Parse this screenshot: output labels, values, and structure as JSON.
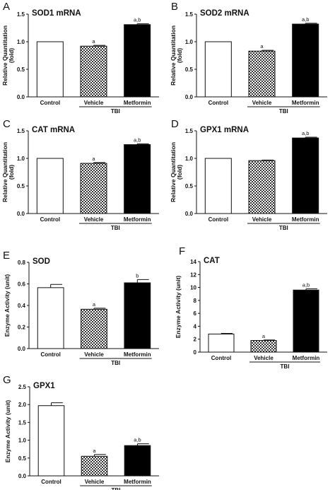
{
  "colors": {
    "control": "#ffffff",
    "vehicle": "checker",
    "metformin": "#000000",
    "axis": "#111111"
  },
  "chart_data": [
    {
      "panel": "A",
      "title": "SOD1 mRNA",
      "type": "bar",
      "ylabel": "Relative Quantitation\n(fold)",
      "ylim": [
        0,
        1.5
      ],
      "yticks": [
        "0.0",
        "0.5",
        "1.0",
        "1.5"
      ],
      "categories": [
        "Control",
        "Vehicle",
        "Metformin"
      ],
      "values": [
        1.0,
        0.92,
        1.31
      ],
      "errors": [
        0,
        0.015,
        0.015
      ],
      "annotations": [
        "",
        "a",
        "a,b"
      ],
      "group_label": "TBI"
    },
    {
      "panel": "B",
      "title": "SOD2 mRNA",
      "type": "bar",
      "ylabel": "Relative Quantitation\n(fold)",
      "ylim": [
        0,
        1.5
      ],
      "yticks": [
        "0.0",
        "0.5",
        "1.0",
        "1.5"
      ],
      "categories": [
        "Control",
        "Vehicle",
        "Metformin"
      ],
      "values": [
        1.0,
        0.83,
        1.32
      ],
      "errors": [
        0,
        0.015,
        0.015
      ],
      "annotations": [
        "",
        "a",
        "a,b"
      ],
      "group_label": "TBI"
    },
    {
      "panel": "C",
      "title": "CAT mRNA",
      "type": "bar",
      "ylabel": "Relative Quantitation\n(fold)",
      "ylim": [
        0,
        1.5
      ],
      "yticks": [
        "0.0",
        "0.5",
        "1.0",
        "1.5"
      ],
      "categories": [
        "Control",
        "Vehicle",
        "Metformin"
      ],
      "values": [
        1.0,
        0.91,
        1.25
      ],
      "errors": [
        0,
        0.015,
        0.015
      ],
      "annotations": [
        "",
        "a",
        "a,b"
      ],
      "group_label": "TBI"
    },
    {
      "panel": "D",
      "title": "GPX1 mRNA",
      "type": "bar",
      "ylabel": "Relative Quantitation\n(fold)",
      "ylim": [
        0,
        1.5
      ],
      "yticks": [
        "0.0",
        "0.5",
        "1.0",
        "1.5"
      ],
      "categories": [
        "Control",
        "Vehicle",
        "Metformin"
      ],
      "values": [
        1.0,
        0.96,
        1.37
      ],
      "errors": [
        0,
        0.01,
        0.015
      ],
      "annotations": [
        "",
        "",
        "a,b"
      ],
      "group_label": "TBI"
    },
    {
      "panel": "E",
      "title": "SOD",
      "type": "bar",
      "ylabel": "Enzyme Activity (unit)",
      "ylim": [
        0,
        0.8
      ],
      "yticks": [
        "0.0",
        "0.2",
        "0.4",
        "0.6",
        "0.8"
      ],
      "categories": [
        "Control",
        "Vehicle",
        "Metformin"
      ],
      "values": [
        0.565,
        0.365,
        0.61
      ],
      "errors": [
        0.03,
        0.01,
        0.03
      ],
      "annotations": [
        "",
        "a",
        "b"
      ],
      "group_label": "TBI"
    },
    {
      "panel": "F",
      "title": "CAT",
      "type": "bar",
      "ylabel": "Enzyme Activity (unit)",
      "ylim": [
        0,
        14
      ],
      "yticks": [
        "0",
        "2",
        "4",
        "6",
        "8",
        "10",
        "12",
        "14"
      ],
      "categories": [
        "Control",
        "Vehicle",
        "Metformin"
      ],
      "values": [
        2.8,
        1.8,
        9.6
      ],
      "errors": [
        0.1,
        0.08,
        0.2
      ],
      "annotations": [
        "",
        "a",
        "a,b"
      ],
      "group_label": "TBI"
    },
    {
      "panel": "G",
      "title": "GPX1",
      "type": "bar",
      "ylabel": "Enzyme Activity (unit)",
      "ylim": [
        0,
        2.5
      ],
      "yticks": [
        "0.0",
        "0.5",
        "1.0",
        "1.5",
        "2.0",
        "2.5"
      ],
      "categories": [
        "Control",
        "Vehicle",
        "Metformin"
      ],
      "values": [
        1.97,
        0.55,
        0.85
      ],
      "errors": [
        0.08,
        0.05,
        0.05
      ],
      "annotations": [
        "",
        "a",
        "a,b"
      ],
      "group_label": "TBI"
    }
  ]
}
